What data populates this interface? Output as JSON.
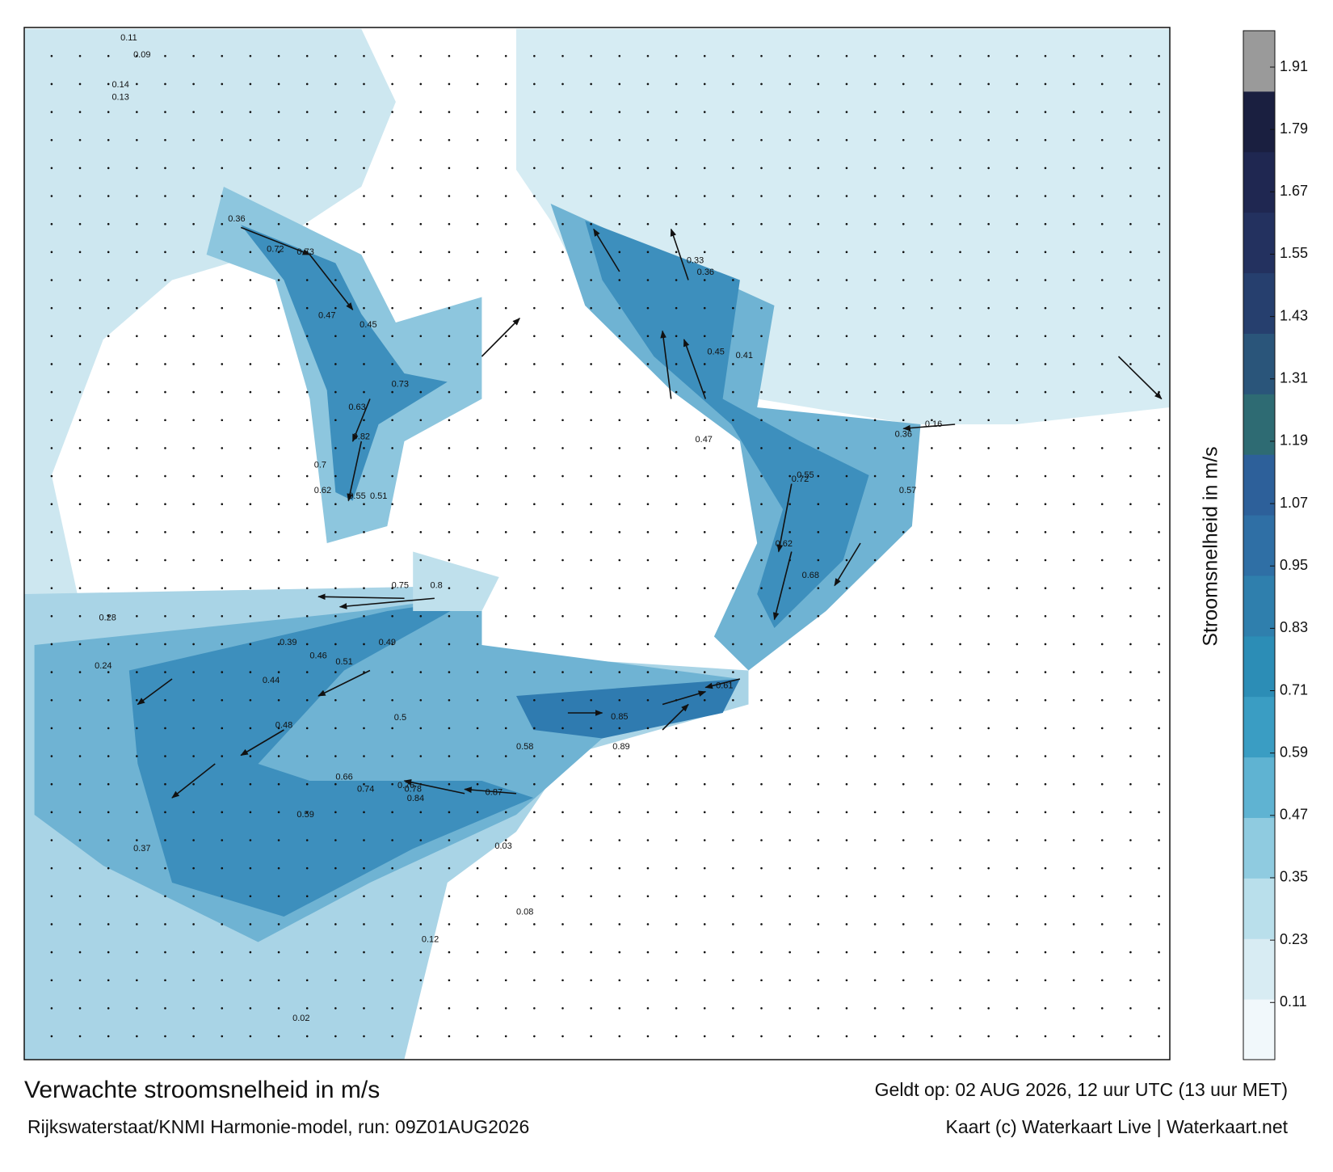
{
  "title": "Verwachte stroomsnelheid in m/s",
  "valid_time": "Geldt op: 02 AUG 2026, 12 uur UTC (13 uur MET)",
  "source": "Rijkswaterstaat/KNMI Harmonie-model, run: 09Z01AUG2026",
  "credit": "Kaart (c) Waterkaart Live | Waterkaart.net",
  "colorbar": {
    "label": "Stroomsnelheid in m/s",
    "range": [
      0,
      1.98
    ],
    "ticks": [
      0.11,
      0.23,
      0.35,
      0.47,
      0.59,
      0.71,
      0.83,
      0.95,
      1.07,
      1.19,
      1.31,
      1.43,
      1.55,
      1.67,
      1.79,
      1.91
    ],
    "colors": [
      "#f1f8fb",
      "#d8ecf3",
      "#b9dfeb",
      "#8fcbe0",
      "#5fb3d2",
      "#3a9dc3",
      "#2c8db6",
      "#2f7fad",
      "#2f6fa5",
      "#2d609a",
      "#2e6b73",
      "#2a557a",
      "#263f6e",
      "#23315f",
      "#1f2751",
      "#1a1f40",
      "#9a9a9a"
    ]
  },
  "map_labels": [
    0.11,
    0.09,
    0.14,
    0.13,
    0.36,
    0.72,
    0.73,
    0.45,
    0.47,
    0.73,
    0.63,
    0.82,
    0.7,
    0.55,
    0.51,
    0.62,
    0.75,
    0.8,
    0.39,
    0.46,
    0.51,
    0.44,
    0.49,
    0.48,
    0.5,
    0.66,
    0.76,
    0.87,
    0.78,
    0.84,
    0.58,
    0.59,
    0.74,
    0.85,
    0.89,
    0.61,
    0.33,
    0.36,
    0.45,
    0.41,
    0.47,
    0.55,
    0.72,
    0.68,
    0.62,
    0.36,
    0.16,
    0.57,
    0.03,
    0.02,
    0.08,
    0.12,
    0.28,
    0.37,
    0.24
  ]
}
